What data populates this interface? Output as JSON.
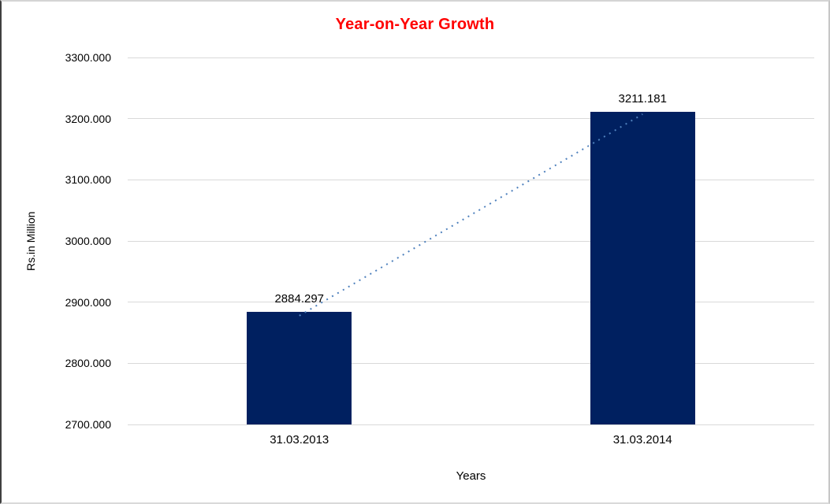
{
  "chart_data": {
    "type": "bar",
    "title": "Year-on-Year Growth",
    "title_color": "#ff0000",
    "categories": [
      "31.03.2013",
      "31.03.2014"
    ],
    "values": [
      2884.297,
      3211.181
    ],
    "data_labels": [
      "2884.297",
      "3211.181"
    ],
    "xlabel": "Years",
    "ylabel": "Rs.in Million",
    "ylim": [
      2700,
      3300
    ],
    "ytick_step": 100,
    "ytick_labels": [
      "2700.000",
      "2800.000",
      "2900.000",
      "3000.000",
      "3100.000",
      "3200.000",
      "3300.000"
    ],
    "grid": true,
    "grid_color": "#d9d9d9",
    "bar_color": "#002060",
    "legend": "none",
    "trendline": {
      "style": "dotted",
      "color": "#4f81bd"
    }
  }
}
